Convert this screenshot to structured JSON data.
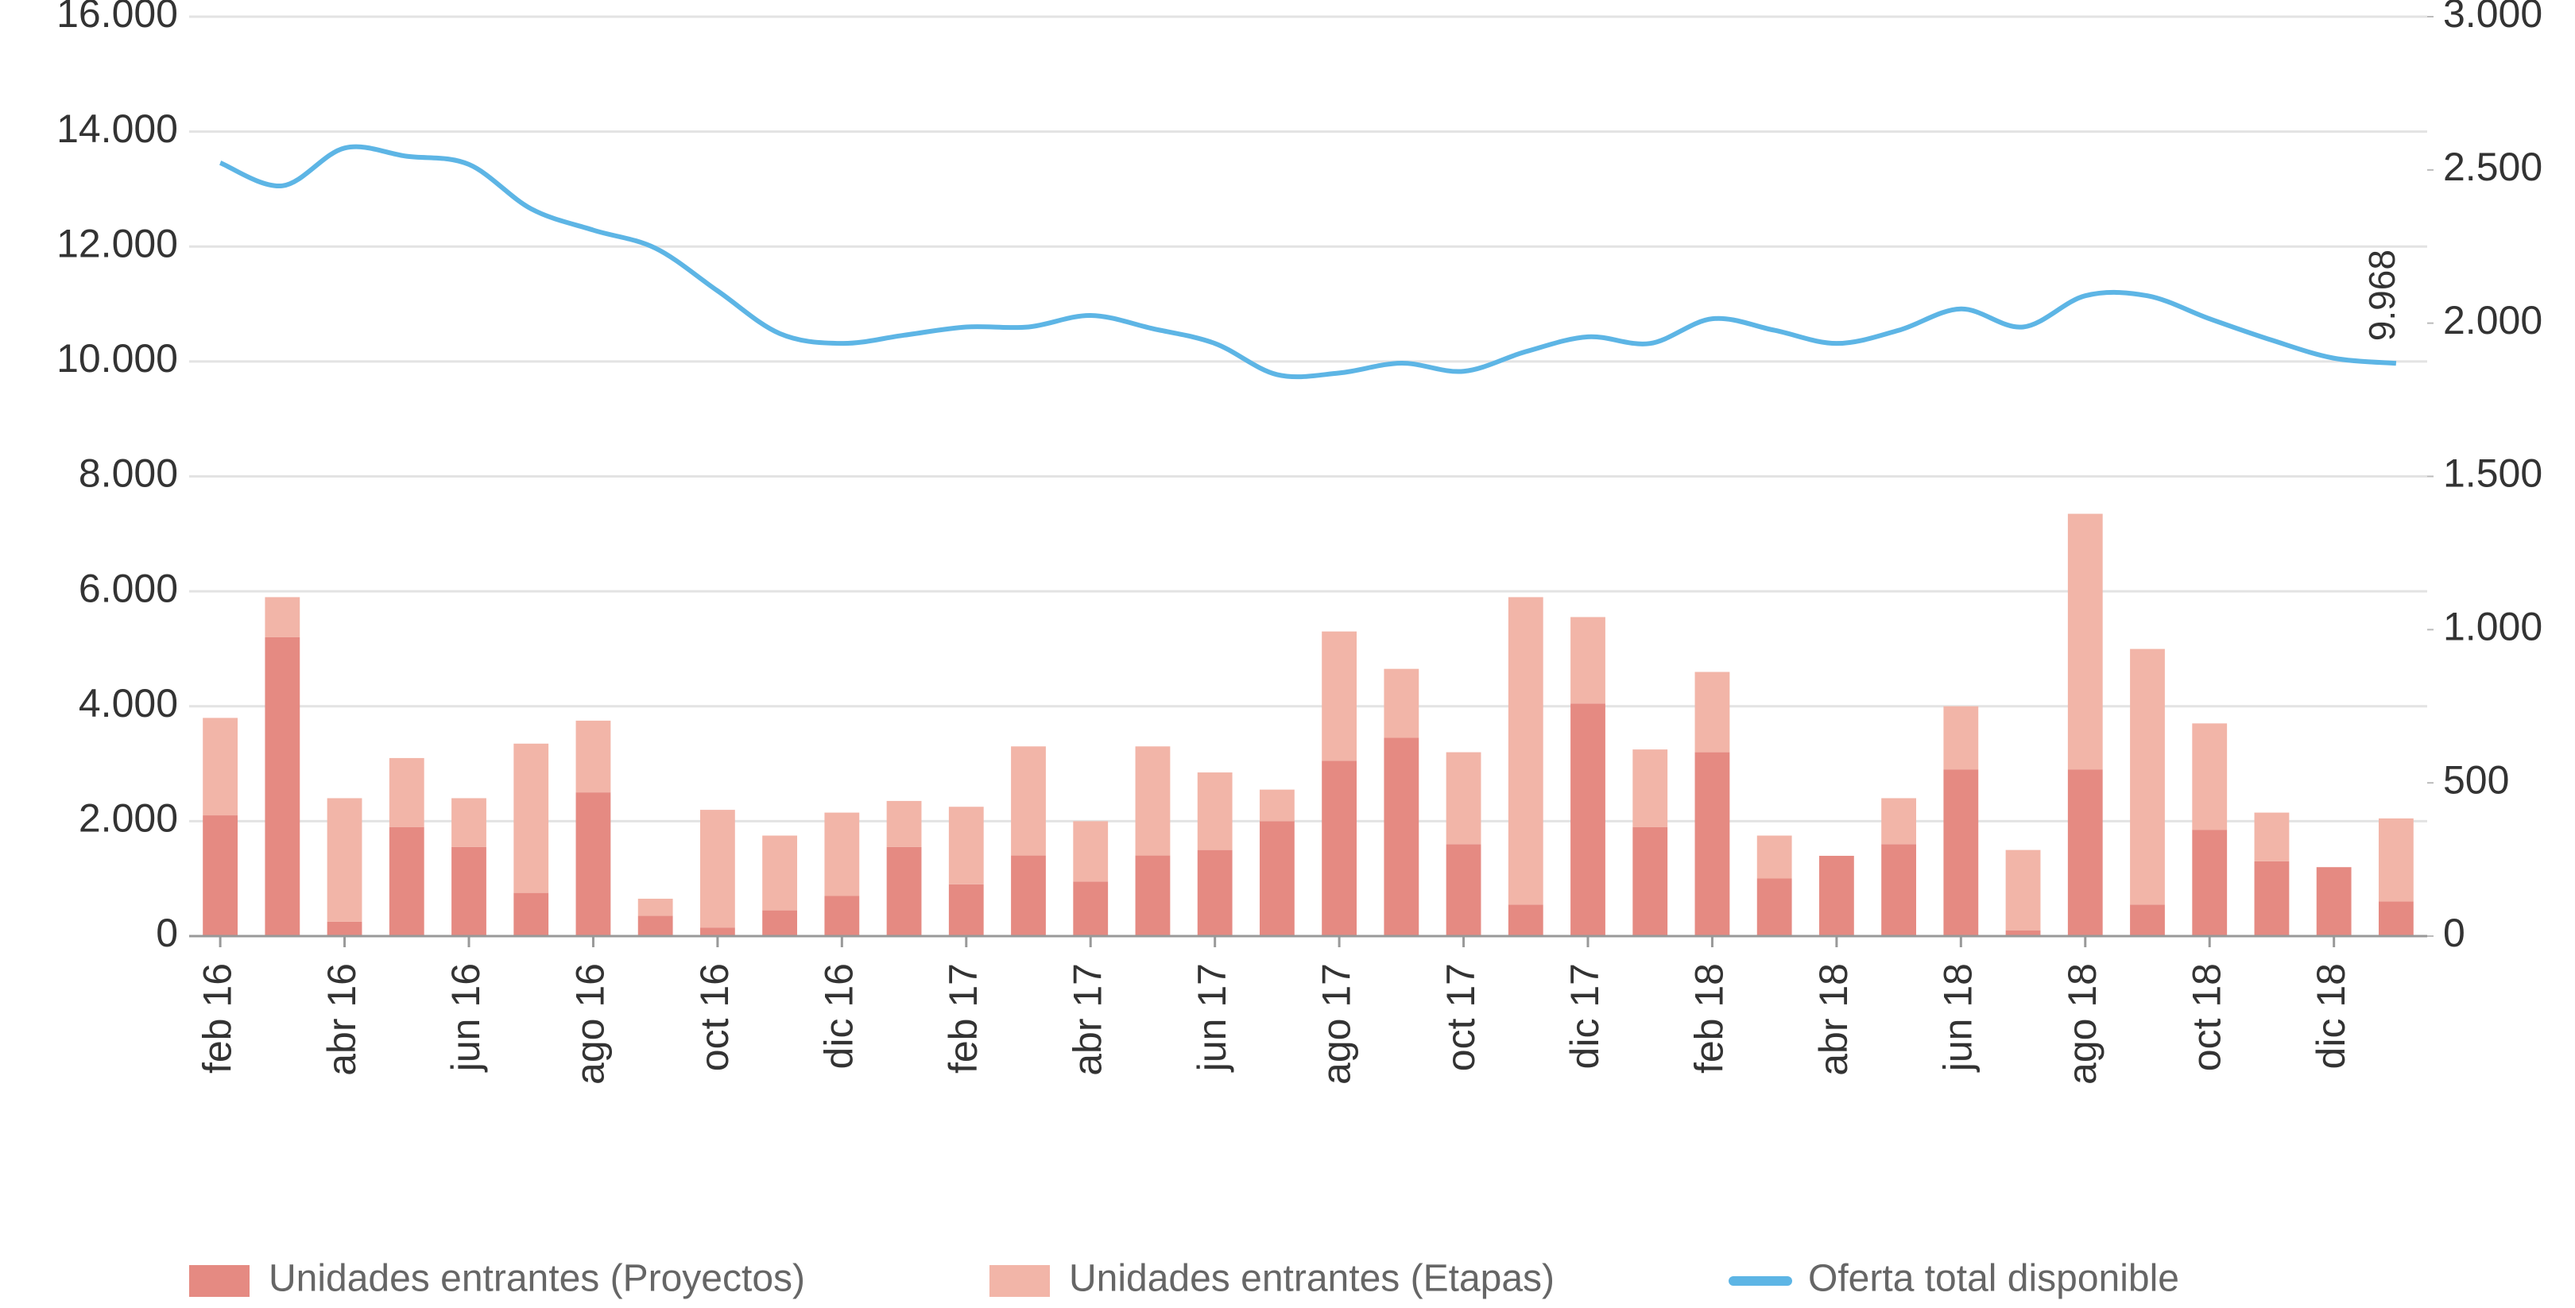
{
  "chart_data": {
    "type": "bar-line",
    "categories": [
      "feb 16",
      null,
      "abr 16",
      null,
      "jun 16",
      null,
      "ago 16",
      null,
      "oct 16",
      null,
      "dic 16",
      null,
      "feb 17",
      null,
      "abr 17",
      null,
      "jun 17",
      null,
      "ago 17",
      null,
      "oct 17",
      null,
      "dic 17",
      null,
      "feb 18",
      null,
      "abr 18",
      null,
      "jun 18",
      null,
      "ago 18",
      null,
      "oct 18",
      null,
      "dic 18",
      null
    ],
    "series": [
      {
        "name": "Unidades entrantes (Proyectos)",
        "type": "bar",
        "axis": "y2",
        "color": "#e58a82",
        "values": [
          394,
          975,
          47,
          356,
          291,
          141,
          469,
          66,
          28,
          84,
          131,
          291,
          169,
          263,
          178,
          263,
          281,
          375,
          572,
          647,
          300,
          103,
          759,
          356,
          600,
          188,
          262,
          300,
          544,
          19,
          544,
          103,
          347,
          244,
          225,
          113
        ]
      },
      {
        "name": "Unidades entrantes (Etapas)",
        "type": "bar",
        "axis": "y2",
        "color": "#f2b5a8",
        "values": [
          318,
          131,
          403,
          225,
          159,
          487,
          234,
          56,
          384,
          244,
          272,
          150,
          253,
          356,
          197,
          356,
          253,
          103,
          422,
          225,
          300,
          1003,
          282,
          253,
          262,
          140,
          0,
          150,
          206,
          262,
          834,
          834,
          347,
          159,
          0,
          271
        ]
      },
      {
        "name": "Oferta total disponible",
        "type": "line",
        "color": "#5db5e5",
        "values": [
          13457,
          13057,
          13714,
          13571,
          13429,
          12657,
          12286,
          11971,
          11229,
          10486,
          10314,
          10457,
          10600,
          10600,
          10800,
          10571,
          10314,
          9771,
          9800,
          9971,
          9829,
          10171,
          10429,
          10314,
          10743,
          10543,
          10314,
          10543,
          10914,
          10600,
          11143,
          11143,
          10743,
          10371,
          10057,
          9968
        ],
        "value_labels": [
          null,
          null,
          null,
          null,
          null,
          null,
          null,
          null,
          null,
          null,
          null,
          null,
          null,
          null,
          null,
          null,
          null,
          null,
          null,
          null,
          null,
          null,
          null,
          null,
          null,
          null,
          null,
          null,
          null,
          null,
          null,
          null,
          null,
          null,
          null,
          "9.968"
        ]
      }
    ],
    "ylim": [
      0,
      16000
    ],
    "yticks": [
      0,
      {
        "value": 2000,
        "label": "2.000"
      },
      {
        "value": 4000,
        "label": "4.000"
      },
      {
        "value": 6000,
        "label": "6.000"
      },
      {
        "value": 8000,
        "label": "8.000"
      },
      {
        "value": 10000,
        "label": "10.000"
      },
      {
        "value": 12000,
        "label": "12.000"
      },
      {
        "value": 14000,
        "label": "14.000"
      },
      {
        "value": 16000,
        "label": "16.000"
      }
    ],
    "y2lim": [
      0,
      3000
    ],
    "y2ticks": [
      0,
      500,
      {
        "value": 1000,
        "label": "1.000"
      },
      {
        "value": 1500,
        "label": "1.500"
      },
      {
        "value": 2000,
        "label": "2.000"
      },
      {
        "value": 2500,
        "label": "2.500"
      },
      {
        "value": 3000,
        "label": "3.000"
      }
    ],
    "grid": true,
    "legend": "bottom"
  }
}
